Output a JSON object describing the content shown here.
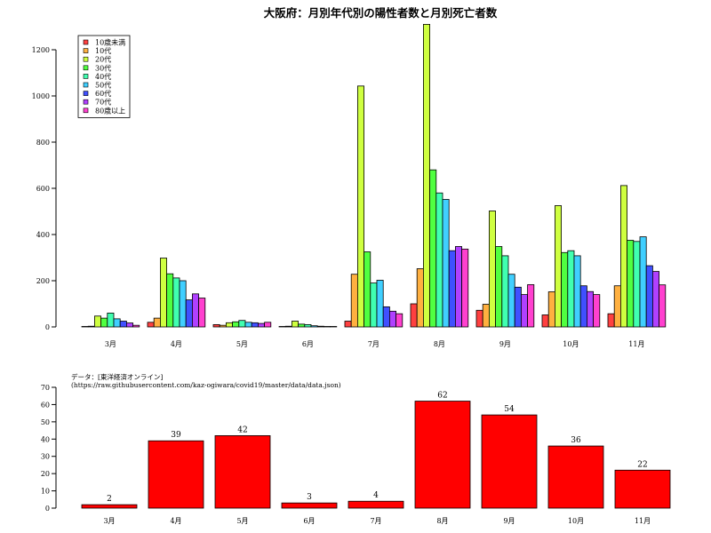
{
  "chart_data": [
    {
      "type": "bar",
      "title": "大阪府：月別年代別の陽性者数と月別死亡者数",
      "categories": [
        "3月",
        "4月",
        "5月",
        "6月",
        "7月",
        "8月",
        "9月",
        "10月",
        "11月"
      ],
      "ylim": [
        0,
        1300
      ],
      "yticks": [
        0,
        200,
        400,
        600,
        800,
        1000,
        1200
      ],
      "legend_position": "top-left",
      "series": [
        {
          "name": "10歳未満",
          "color": "#FF4040",
          "values": [
            2,
            20,
            10,
            2,
            25,
            100,
            72,
            52,
            57
          ]
        },
        {
          "name": "10代",
          "color": "#FFB040",
          "values": [
            3,
            38,
            7,
            3,
            228,
            252,
            98,
            152,
            178
          ]
        },
        {
          "name": "20代",
          "color": "#CFFF40",
          "values": [
            47,
            298,
            18,
            25,
            1043,
            1310,
            502,
            525,
            612
          ]
        },
        {
          "name": "30代",
          "color": "#50FF40",
          "values": [
            38,
            230,
            22,
            12,
            325,
            680,
            348,
            322,
            375
          ]
        },
        {
          "name": "40代",
          "color": "#40FFB0",
          "values": [
            60,
            212,
            28,
            10,
            190,
            580,
            308,
            330,
            370
          ]
        },
        {
          "name": "50代",
          "color": "#40CFFF",
          "values": [
            35,
            200,
            20,
            5,
            202,
            552,
            228,
            308,
            390
          ]
        },
        {
          "name": "60代",
          "color": "#4050FF",
          "values": [
            25,
            117,
            18,
            3,
            87,
            330,
            172,
            178,
            265
          ]
        },
        {
          "name": "70代",
          "color": "#B040FF",
          "values": [
            17,
            143,
            15,
            2,
            68,
            348,
            140,
            153,
            240
          ]
        },
        {
          "name": "80歳以上",
          "color": "#FF40CF",
          "values": [
            7,
            125,
            20,
            2,
            57,
            337,
            183,
            140,
            182
          ]
        }
      ]
    },
    {
      "type": "bar",
      "categories": [
        "3月",
        "4月",
        "5月",
        "6月",
        "7月",
        "8月",
        "9月",
        "10月",
        "11月"
      ],
      "ylim": [
        0,
        70
      ],
      "yticks": [
        0,
        10,
        20,
        30,
        40,
        50,
        60,
        70
      ],
      "bar_color": "#FF0000",
      "values": [
        2,
        39,
        42,
        3,
        4,
        62,
        54,
        36,
        22
      ],
      "data_labels": [
        "2",
        "39",
        "42",
        "3",
        "4",
        "62",
        "54",
        "36",
        "22"
      ],
      "source_note": [
        "データ：[東洋経済オンライン]",
        "(https://raw.githubusercontent.com/kaz-ogiwara/covid19/master/data/data.json)"
      ]
    }
  ]
}
